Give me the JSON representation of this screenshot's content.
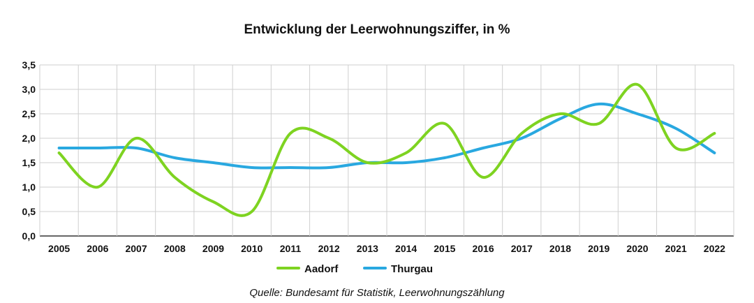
{
  "chart_data": {
    "type": "line",
    "title": "Entwicklung der Leerwohnungsziffer, in %",
    "x": [
      "2005",
      "2006",
      "2007",
      "2008",
      "2009",
      "2010",
      "2011",
      "2012",
      "2013",
      "2014",
      "2015",
      "2016",
      "2017",
      "2018",
      "2019",
      "2020",
      "2021",
      "2022"
    ],
    "y_ticks": [
      "0,0",
      "0,5",
      "1,0",
      "1,5",
      "2,0",
      "2,5",
      "3,0",
      "3,5"
    ],
    "ylim": [
      0,
      3.5
    ],
    "grid": true,
    "legend_placement": "bottom",
    "series": [
      {
        "name": "Aadorf",
        "color": "#7ed321",
        "values": [
          1.7,
          1.0,
          2.0,
          1.2,
          0.7,
          0.5,
          2.1,
          2.0,
          1.5,
          1.7,
          2.3,
          1.2,
          2.1,
          2.5,
          2.3,
          3.1,
          1.8,
          2.1
        ]
      },
      {
        "name": "Thurgau",
        "color": "#29a8e0",
        "values": [
          1.8,
          1.8,
          1.8,
          1.6,
          1.5,
          1.4,
          1.4,
          1.4,
          1.5,
          1.5,
          1.6,
          1.8,
          2.0,
          2.4,
          2.7,
          2.5,
          2.2,
          1.7
        ]
      }
    ],
    "source": "Quelle: Bundesamt für Statistik, Leerwohnungszählung"
  }
}
